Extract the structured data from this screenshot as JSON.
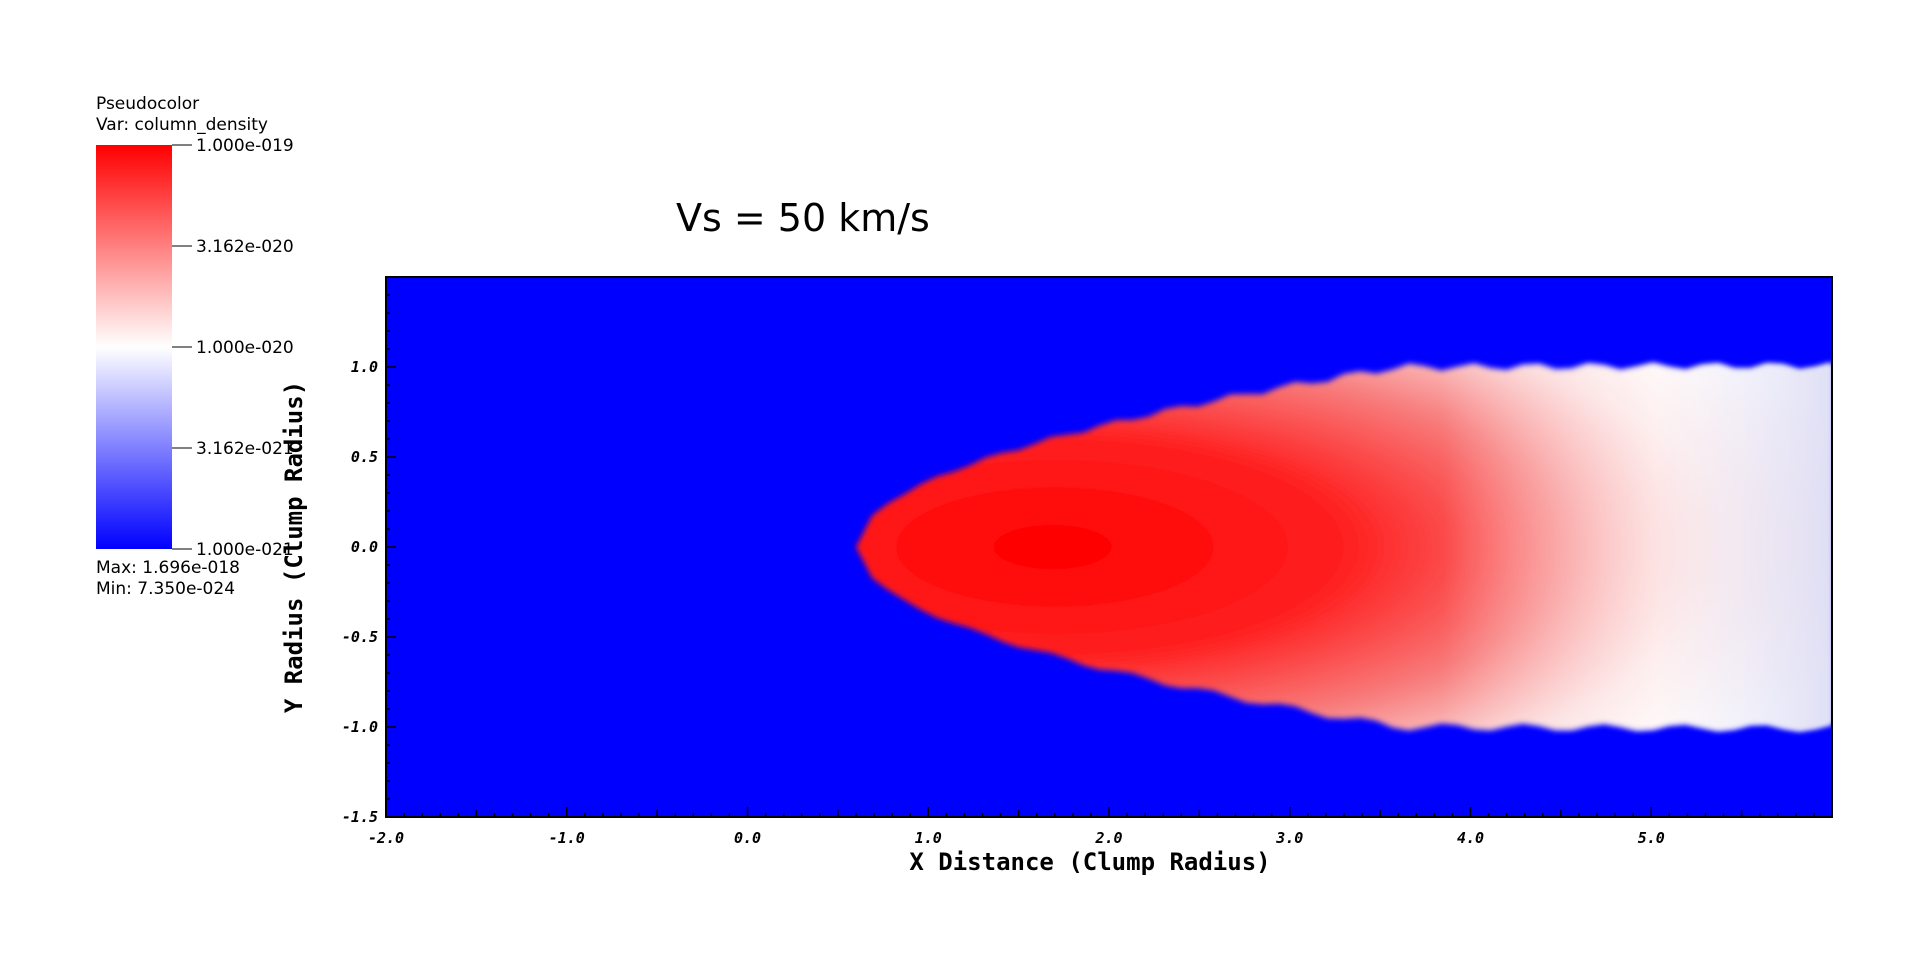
{
  "legend": {
    "plot_type": "Pseudocolor",
    "var_label": "Var: column_density",
    "max_label": "Max:  1.696e-018",
    "min_label": "Min:  7.350e-024",
    "colorbar_ticks": [
      "1.000e-019",
      "3.162e-020",
      "1.000e-020",
      "3.162e-021",
      "1.000e-021"
    ],
    "colors": {
      "high": "#ff0000",
      "mid": "#ffffff",
      "low": "#0000ff"
    }
  },
  "chart_data": {
    "type": "heatmap",
    "title": "Vs = 50 km/s",
    "xlabel": "X Distance (Clump Radius)",
    "ylabel": "Y Radius (Clump Radius)",
    "xlim": [
      -2.0,
      6.0
    ],
    "ylim": [
      -1.5,
      1.5
    ],
    "x_ticks": [
      "-2.0",
      "-1.0",
      "0.0",
      "1.0",
      "2.0",
      "3.0",
      "4.0",
      "5.0"
    ],
    "x_tick_values": [
      -2.0,
      -1.0,
      0.0,
      1.0,
      2.0,
      3.0,
      4.0,
      5.0
    ],
    "y_ticks": [
      "-1.5",
      "-1.0",
      "-0.5",
      "0.0",
      "0.5",
      "1.0"
    ],
    "y_tick_values": [
      -1.5,
      -1.0,
      -0.5,
      0.0,
      0.5,
      1.0
    ],
    "colorscale": "log",
    "value_range": [
      1e-21,
      1e-19
    ],
    "background_value": 1e-21,
    "cloud": {
      "head_x": 0.6,
      "peak_x": 1.6,
      "tail_x": 6.0,
      "half_width_at_tail": 1.0
    }
  }
}
